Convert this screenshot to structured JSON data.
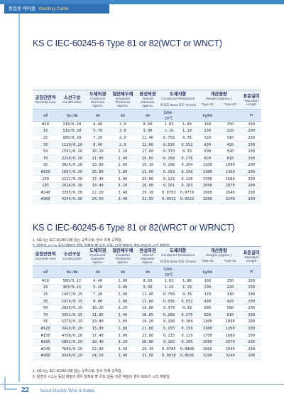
{
  "header": {
    "category_ko": "용접용 케이블",
    "category_en": "Welding Cable"
  },
  "tables": [
    {
      "title": "KS C IEC-60245-6 Type 81 or 82(WCT or WNCT)",
      "headers": {
        "nominal_ko": "공칭단면적",
        "nominal_en": "Nominal Area",
        "construction_ko": "소선구성",
        "construction_en": "Construction",
        "conductor_ko": "도체외경",
        "conductor_en": "Conductor Diameter Approx.",
        "insulation_ko": "절연체두께",
        "insulation_en": "Insulation Thickness Approx.",
        "overall_ko": "완성외경",
        "overall_en": "Overall Diameter Approx.",
        "resistance_ko": "도체저항",
        "resistance_en": "Conductor Resistance",
        "bare": "비석도 Bare",
        "tinned": "석도 Tinned",
        "weight_ko": "개산중량",
        "weight_en": "Weight (Approx.)",
        "type81": "Type 81",
        "type82": "Type 82",
        "length_ko": "표준길이",
        "length_en": "Standard Length"
      },
      "units": [
        "㎟",
        "No./㎜",
        "㎜",
        "㎜",
        "㎜",
        "Ω/㎞ · 20℃",
        "",
        "kg/㎞",
        "",
        "m"
      ],
      "rows": [
        [
          "#10",
          "318/0.20",
          "4.40",
          "2.0",
          "8.60",
          "1.83",
          "1.88",
          "160",
          "150",
          "200"
        ],
        [
          "16",
          "512/0.20",
          "5.70",
          "2.0",
          "9.90",
          "1.16",
          "1.19",
          "230",
          "220",
          "200"
        ],
        [
          "25",
          "800/0.20",
          "7.20",
          "2.0",
          "11.40",
          "0.758",
          "0.78",
          "320",
          "310",
          "200"
        ],
        [
          "35",
          "1120/0.20",
          "8.40",
          "2.0",
          "12.60",
          "0.536",
          "0.552",
          "430",
          "420",
          "200"
        ],
        [
          "50",
          "1591/0.20",
          "10.20",
          "2.20",
          "17.60",
          "0.379",
          "0.39",
          "600",
          "590",
          "200"
        ],
        [
          "70",
          "2228/0.20",
          "11.85",
          "2.40",
          "16.65",
          "0.268",
          "0.276",
          "820",
          "810",
          "200"
        ],
        [
          "95",
          "3024/0.20",
          "13.80",
          "2.60",
          "19.10",
          "0.198",
          "0.204",
          "1100",
          "1090",
          "200"
        ],
        [
          "#150",
          "1697/0.30",
          "15.80",
          "2.80",
          "21.60",
          "0.153",
          "0.156",
          "1380",
          "1360",
          "200"
        ],
        [
          "150",
          "2122/0.30",
          "17.40",
          "3.00",
          "23.60",
          "0.123",
          "0.126",
          "1700",
          "1680",
          "200"
        ],
        [
          "185",
          "2614/0.30",
          "19.40",
          "3.20",
          "26.00",
          "0.101",
          "0.103",
          "2090",
          "2070",
          "200"
        ],
        [
          "#240",
          "3395/0.30",
          "22.10",
          "3.40",
          "29.10",
          "0.0763",
          "0.0778",
          "2660",
          "2640",
          "200"
        ],
        [
          "#300",
          "4244/0.30",
          "24.50",
          "3.40",
          "31.50",
          "0.0611",
          "0.0623",
          "3260",
          "3240",
          "200"
        ]
      ],
      "notes": [
        "1. #표시는 IEC-60245-6에 없는 규격으로, 당사 자체 규격임.",
        "2. 절연과 시스는 동일 재질의 경우 일체로 할 수도 있음. 다른 재질의 경우 65%가 시즈 재질임."
      ]
    },
    {
      "title": "KS C IEC-60245-6 Type 81 or 82(WRCT or WRNCT)",
      "headers": {
        "nominal_ko": "공칭단면적",
        "nominal_en": "Nominal Area",
        "construction_ko": "소선구성",
        "construction_en": "Construction",
        "conductor_ko": "도체외경",
        "conductor_en": "Conductor Diameter Approx.",
        "insulation_ko": "절연체두께",
        "insulation_en": "Insulation Thickness Approx.",
        "overall_ko": "완성외경",
        "overall_en": "Overall Diameter Approx.",
        "resistance_ko": "도체저항",
        "resistance_en": "Conductor Resistance",
        "bare": "비석도 Bare",
        "tinned": "석도 Tinned",
        "weight_ko": "개산중량",
        "weight_en": "Weight (Approx.)",
        "type81": "Type 81",
        "type82": "Type 82",
        "length_ko": "표준길이",
        "length_en": "Standard Length"
      },
      "units": [
        "㎟",
        "No./㎜",
        "㎜",
        "㎜",
        "㎜",
        "Ω/㎞ · 20℃",
        "",
        "kg/㎞",
        "",
        "m"
      ],
      "rows": [
        [
          "#10",
          "566/0.15",
          "4.40",
          "2.00",
          "8.60",
          "1.83",
          "1.88",
          "160",
          "150",
          "200"
        ],
        [
          "16",
          "903/0.15",
          "5.20",
          "2.00",
          "9.90",
          "1.16",
          "1.19",
          "230",
          "220",
          "200"
        ],
        [
          "25",
          "1407/0.15",
          "7.20",
          "2.00",
          "11.40",
          "0.758",
          "0.78",
          "320",
          "310",
          "200"
        ],
        [
          "35",
          "1974/0.15",
          "8.40",
          "2.00",
          "12.60",
          "0.536",
          "0.552",
          "430",
          "420",
          "200"
        ],
        [
          "50",
          "2830/0.15",
          "10.20",
          "2.20",
          "14.80",
          "0.379",
          "0.39",
          "600",
          "590",
          "200"
        ],
        [
          "70",
          "3952/0.15",
          "11.85",
          "2.40",
          "16.65",
          "0.268",
          "0.276",
          "820",
          "810",
          "200"
        ],
        [
          "95",
          "5370/0.15",
          "13.80",
          "2.60",
          "19.20",
          "0.198",
          "0.204",
          "1100",
          "1090",
          "200"
        ],
        [
          "#120",
          "3419/0.20",
          "15.80",
          "2.80",
          "21.60",
          "0.155",
          "0.159",
          "1380",
          "1360",
          "200"
        ],
        [
          "#150",
          "4788/0.20",
          "17.40",
          "3.00",
          "23.60",
          "0.125",
          "0.129",
          "1700",
          "1680",
          "200"
        ],
        [
          "#185",
          "5852/0.20",
          "19.40",
          "3.20",
          "26.00",
          "0.102",
          "0.105",
          "2090",
          "2070",
          "200"
        ],
        [
          "#240",
          "7689/0.20",
          "22.00",
          "3.40",
          "29.10",
          "0.0785",
          "0.0808",
          "2660",
          "2640",
          "200"
        ],
        [
          "#300",
          "9548/0.20",
          "24.50",
          "3.40",
          "31.50",
          "0.0618",
          "0.0636",
          "3260",
          "3240",
          "200"
        ]
      ],
      "notes": [
        "1. #표시는 IEC-60245-6에 없는 규격으로, 당사 자체 규격임.",
        "2. 절연과 시스는 동일 재질의 경우 일체로 할 수도 있음. 다른 재질의 경우 65%가 시즈 재질임."
      ]
    }
  ],
  "footer": {
    "page_number": "22",
    "company": "Seoul Electric Wire & Cable"
  }
}
